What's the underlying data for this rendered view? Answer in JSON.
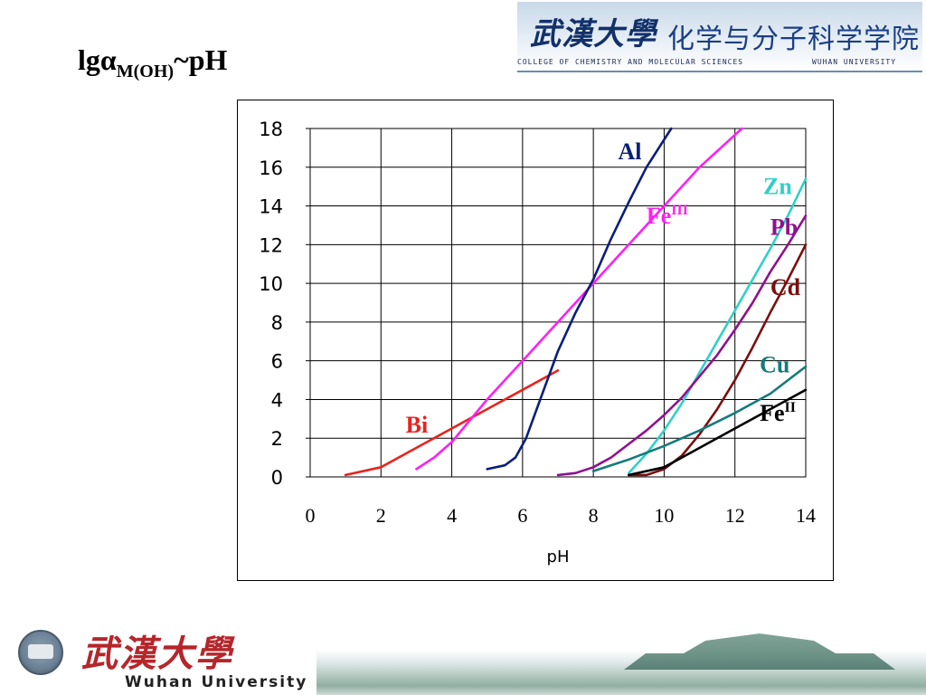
{
  "slide": {
    "title_main": "lgα",
    "title_sub": "M(OH)",
    "title_tail": "~pH"
  },
  "header": {
    "univ_cn": "武漢大學",
    "college_cn": "化学与分子科学学院",
    "college_en": "COLLEGE OF CHEMISTRY AND MOLECULAR SCIENCES",
    "univ_en": "WUHAN UNIVERSITY"
  },
  "footer": {
    "univ_cn": "武漢大學",
    "univ_en": "Wuhan University"
  },
  "chart_data": {
    "type": "line",
    "title": "",
    "xlabel": "pH",
    "ylabel": "",
    "xlim": [
      0,
      14
    ],
    "ylim": [
      0,
      18
    ],
    "xticks": [
      0,
      2,
      4,
      6,
      8,
      10,
      12,
      14
    ],
    "yticks": [
      0,
      2,
      4,
      6,
      8,
      10,
      12,
      14,
      16,
      18
    ],
    "grid": true,
    "series": [
      {
        "name": "Bi",
        "label_sup": "",
        "color": "#e8231e",
        "points": [
          [
            1,
            0.1
          ],
          [
            2,
            0.5
          ],
          [
            3,
            1.5
          ],
          [
            4,
            2.5
          ],
          [
            5,
            3.5
          ],
          [
            6,
            4.5
          ],
          [
            7,
            5.5
          ]
        ],
        "label_at": [
          2.7,
          2.3
        ]
      },
      {
        "name": "Fe",
        "label_sup": "III",
        "color": "#ff1ff5",
        "points": [
          [
            3,
            0.4
          ],
          [
            3.5,
            1.0
          ],
          [
            4,
            1.8
          ],
          [
            4.5,
            2.9
          ],
          [
            5,
            4.0
          ],
          [
            6,
            6.0
          ],
          [
            7,
            8.0
          ],
          [
            8,
            10.0
          ],
          [
            9,
            12.0
          ],
          [
            10,
            14.0
          ],
          [
            11,
            16.0
          ],
          [
            12.2,
            18.0
          ]
        ],
        "label_at": [
          9.5,
          13.1
        ]
      },
      {
        "name": "Al",
        "label_sup": "",
        "color": "#0a1f7a",
        "points": [
          [
            5,
            0.4
          ],
          [
            5.5,
            0.6
          ],
          [
            5.8,
            1.0
          ],
          [
            6.1,
            2.0
          ],
          [
            6.5,
            4.0
          ],
          [
            7,
            6.5
          ],
          [
            7.5,
            8.5
          ],
          [
            8,
            10.2
          ],
          [
            8.5,
            12.3
          ],
          [
            9,
            14.2
          ],
          [
            9.5,
            16.0
          ],
          [
            10.2,
            18.0
          ]
        ],
        "label_at": [
          8.7,
          16.4
        ]
      },
      {
        "name": "Zn",
        "label_sup": "",
        "color": "#30d0c8",
        "points": [
          [
            9,
            0.2
          ],
          [
            9.5,
            1.2
          ],
          [
            10,
            2.4
          ],
          [
            10.5,
            3.8
          ],
          [
            11,
            5.4
          ],
          [
            11.5,
            7.0
          ],
          [
            12,
            8.6
          ],
          [
            12.5,
            10.2
          ],
          [
            13,
            11.8
          ],
          [
            13.5,
            13.5
          ],
          [
            14,
            15.4
          ]
        ],
        "label_at": [
          12.8,
          14.6
        ]
      },
      {
        "name": "Pb",
        "label_sup": "",
        "color": "#8e118e",
        "points": [
          [
            7,
            0.1
          ],
          [
            7.5,
            0.2
          ],
          [
            8,
            0.5
          ],
          [
            8.5,
            1.0
          ],
          [
            9,
            1.7
          ],
          [
            9.5,
            2.4
          ],
          [
            10,
            3.2
          ],
          [
            10.5,
            4.1
          ],
          [
            11,
            5.2
          ],
          [
            11.5,
            6.3
          ],
          [
            12,
            7.6
          ],
          [
            12.5,
            9.0
          ],
          [
            13,
            10.6
          ],
          [
            13.5,
            12.0
          ],
          [
            14,
            13.5
          ]
        ],
        "label_at": [
          13.0,
          12.5
        ]
      },
      {
        "name": "Cd",
        "label_sup": "",
        "color": "#7a0f0f",
        "points": [
          [
            9,
            0.1
          ],
          [
            9.5,
            0.1
          ],
          [
            10,
            0.4
          ],
          [
            10.5,
            1.1
          ],
          [
            11,
            2.2
          ],
          [
            11.5,
            3.5
          ],
          [
            12,
            5.0
          ],
          [
            12.5,
            6.7
          ],
          [
            13,
            8.5
          ],
          [
            13.5,
            10.2
          ],
          [
            14,
            12.0
          ]
        ],
        "label_at": [
          13.0,
          9.4
        ]
      },
      {
        "name": "Cu",
        "label_sup": "",
        "color": "#167a7a",
        "points": [
          [
            8,
            0.3
          ],
          [
            9,
            0.9
          ],
          [
            10,
            1.6
          ],
          [
            11,
            2.4
          ],
          [
            12,
            3.3
          ],
          [
            13,
            4.3
          ],
          [
            14,
            5.7
          ]
        ],
        "label_at": [
          12.7,
          5.4
        ]
      },
      {
        "name": "Fe",
        "label_sup": "II",
        "color": "#000000",
        "points": [
          [
            9,
            0.1
          ],
          [
            10,
            0.5
          ],
          [
            11,
            1.5
          ],
          [
            12,
            2.5
          ],
          [
            13,
            3.5
          ],
          [
            14,
            4.5
          ]
        ],
        "label_at": [
          12.7,
          2.9
        ]
      }
    ]
  }
}
